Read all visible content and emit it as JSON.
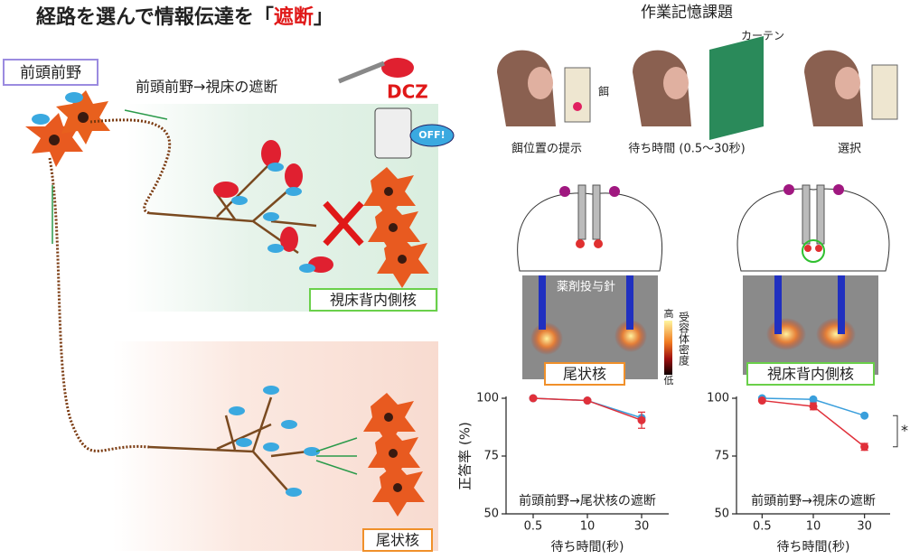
{
  "title": {
    "prefix": "経路を選んで情報伝達を「",
    "highlight": "遮断",
    "suffix": "」"
  },
  "left_panel": {
    "source_label": "前頭前野",
    "pathway_label": "前頭前野→視床の遮断",
    "drug": "DCZ",
    "switch": "OFF!",
    "thalamus_label": "視床背内側核",
    "caudate_label": "尾状核"
  },
  "task": {
    "title": "作業記憶課題",
    "curtain": "カーテン",
    "bait": "餌",
    "steps": [
      "餌位置の提示",
      "待ち時間 (0.5〜30秒)",
      "選択"
    ]
  },
  "brain_images": {
    "needle_label": "薬剤投与針",
    "colorbar_title": "受容体密度",
    "colorbar_high": "高",
    "colorbar_low": "低",
    "regions": [
      "尾状核",
      "視床背内側核"
    ]
  },
  "chart_data": [
    {
      "type": "line",
      "ylabel": "正答率 (%)",
      "xlabel": "待ち時間(秒)",
      "annotation": "前頭前野→尾状核の遮断",
      "categories": [
        "0.5",
        "10",
        "30"
      ],
      "series": [
        {
          "color": "#3a9fdc",
          "values": [
            100,
            99,
            91.5
          ]
        },
        {
          "color": "#e0303a",
          "values": [
            100,
            99,
            90.5
          ],
          "errors": [
            0.5,
            0.5,
            3.5
          ]
        }
      ],
      "ylim": [
        50,
        100
      ],
      "yticks": [
        50,
        75,
        100
      ]
    },
    {
      "type": "line",
      "xlabel": "待ち時間(秒)",
      "annotation": "前頭前野→視床の遮断",
      "significance": "*",
      "categories": [
        "0.5",
        "10",
        "30"
      ],
      "series": [
        {
          "color": "#3a9fdc",
          "values": [
            100,
            99.5,
            92.5
          ]
        },
        {
          "color": "#e0303a",
          "values": [
            99,
            96.5,
            79
          ],
          "errors": [
            0.5,
            1.5,
            1.5
          ]
        }
      ],
      "ylim": [
        50,
        100
      ],
      "yticks": [
        50,
        75,
        100
      ]
    }
  ]
}
